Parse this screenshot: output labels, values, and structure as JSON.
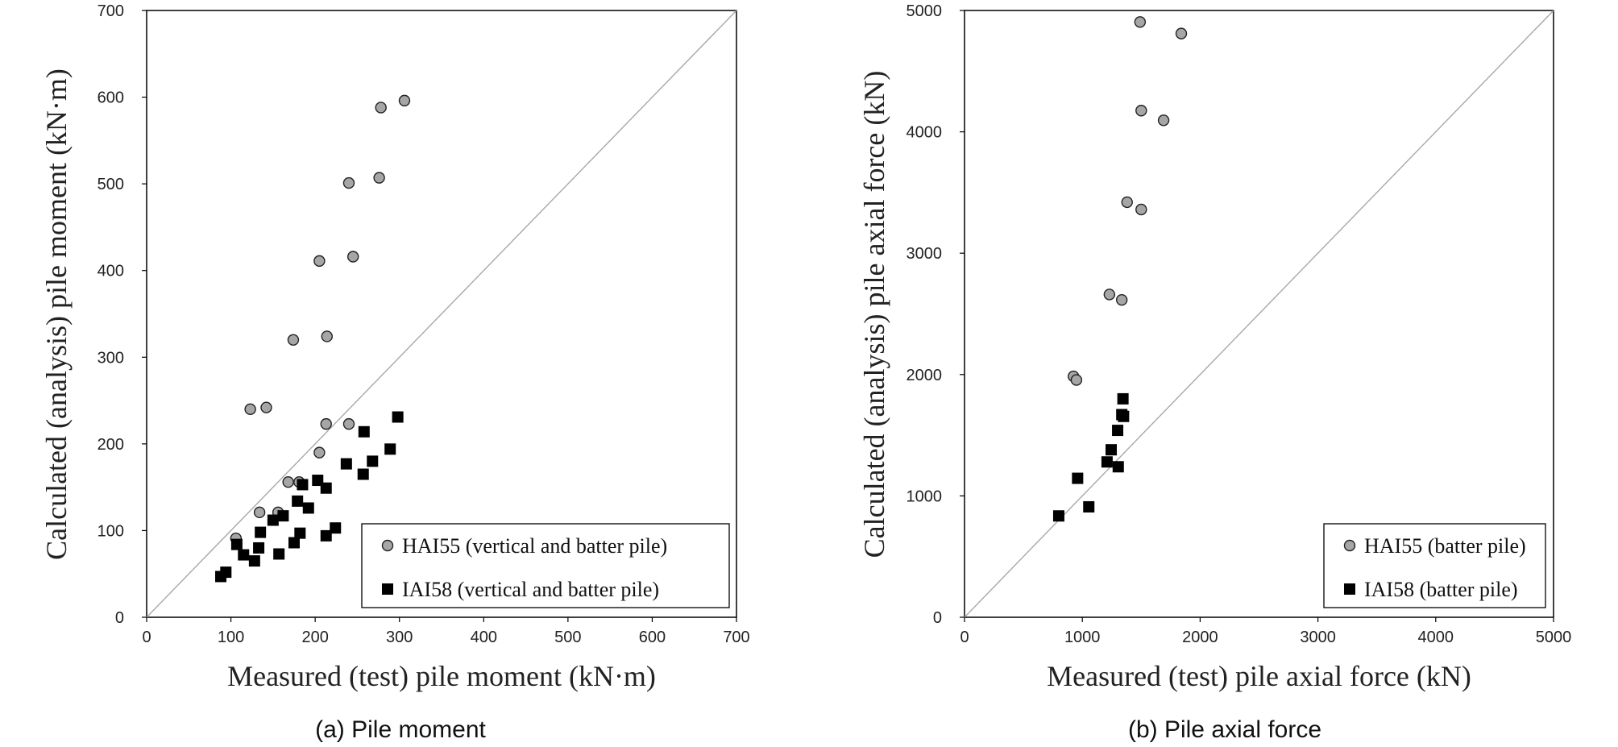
{
  "chart_data": [
    {
      "type": "scatter",
      "caption": "(a) Pile moment",
      "xlabel": "Measured (test) pile moment (kN·m)",
      "ylabel": "Calculated (analysis) pile moment (kN·m)",
      "xlim": [
        0,
        700
      ],
      "ylim": [
        0,
        700
      ],
      "xticks": [
        0,
        100,
        200,
        300,
        400,
        500,
        600,
        700
      ],
      "yticks": [
        0,
        100,
        200,
        300,
        400,
        500,
        600,
        700
      ],
      "grid": false,
      "reference_line": "y = x",
      "legend_position": "bottom-right",
      "series": [
        {
          "name": "HAI55 (vertical and batter pile)",
          "marker": "circle",
          "color": "#a6a6a6",
          "points": [
            [
              106,
              91
            ],
            [
              123,
              240
            ],
            [
              134,
              121
            ],
            [
              142,
              242
            ],
            [
              156,
              121
            ],
            [
              168,
              156
            ],
            [
              174,
              320
            ],
            [
              181,
              156
            ],
            [
              205,
              190
            ],
            [
              205,
              411
            ],
            [
              213,
              223
            ],
            [
              214,
              324
            ],
            [
              240,
              501
            ],
            [
              240,
              223
            ],
            [
              245,
              416
            ],
            [
              276,
              507
            ],
            [
              278,
              588
            ],
            [
              306,
              596
            ]
          ]
        },
        {
          "name": "IAI58 (vertical and batter pile)",
          "marker": "square",
          "color": "#000000",
          "points": [
            [
              88,
              47
            ],
            [
              94,
              52
            ],
            [
              107,
              84
            ],
            [
              115,
              72
            ],
            [
              128,
              65
            ],
            [
              133,
              80
            ],
            [
              135,
              98
            ],
            [
              150,
              112
            ],
            [
              157,
              73
            ],
            [
              162,
              117
            ],
            [
              175,
              86
            ],
            [
              179,
              134
            ],
            [
              182,
              97
            ],
            [
              185,
              153
            ],
            [
              192,
              126
            ],
            [
              203,
              158
            ],
            [
              213,
              94
            ],
            [
              213,
              149
            ],
            [
              224,
              103
            ],
            [
              237,
              177
            ],
            [
              257,
              165
            ],
            [
              258,
              214
            ],
            [
              268,
              180
            ],
            [
              289,
              194
            ],
            [
              298,
              231
            ]
          ]
        }
      ]
    },
    {
      "type": "scatter",
      "caption": "(b) Pile axial force",
      "xlabel": "Measured (test) pile axial force (kN)",
      "ylabel": "Calculated (analysis) pile axial force (kN)",
      "xlim": [
        0,
        5000
      ],
      "ylim": [
        0,
        5000
      ],
      "xticks": [
        0,
        1000,
        2000,
        3000,
        4000,
        5000
      ],
      "yticks": [
        0,
        1000,
        2000,
        3000,
        4000,
        5000
      ],
      "grid": false,
      "reference_line": "y = x",
      "legend_position": "bottom-right",
      "series": [
        {
          "name": "HAI55 (batter pile)",
          "marker": "circle",
          "color": "#a6a6a6",
          "points": [
            [
              925,
              1985
            ],
            [
              950,
              1955
            ],
            [
              1230,
              2660
            ],
            [
              1335,
              2615
            ],
            [
              1380,
              3420
            ],
            [
              1490,
              4905
            ],
            [
              1500,
              4175
            ],
            [
              1500,
              3360
            ],
            [
              1690,
              4095
            ],
            [
              1840,
              4810
            ]
          ]
        },
        {
          "name": "IAI58 (batter pile)",
          "marker": "square",
          "color": "#000000",
          "points": [
            [
              800,
              835
            ],
            [
              960,
              1145
            ],
            [
              1055,
              910
            ],
            [
              1210,
              1280
            ],
            [
              1245,
              1380
            ],
            [
              1300,
              1540
            ],
            [
              1305,
              1240
            ],
            [
              1335,
              1670
            ],
            [
              1345,
              1800
            ],
            [
              1350,
              1655
            ]
          ]
        }
      ]
    }
  ]
}
